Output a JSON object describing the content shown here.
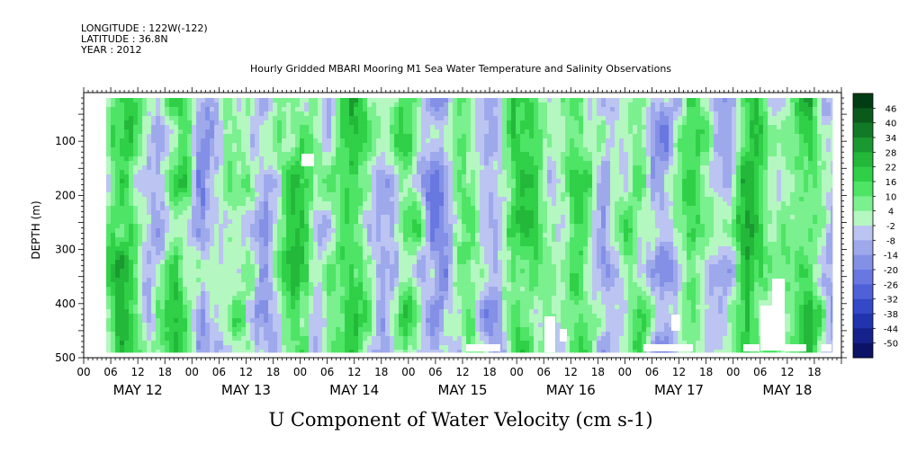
{
  "header": {
    "longitude": "LONGITUDE : 122W(-122)",
    "latitude": "LATITUDE : 36.8N",
    "year": "YEAR : 2012"
  },
  "chart_data": {
    "type": "heatmap",
    "title": "Hourly Gridded MBARI Mooring M1 Sea Water Temperature and Salinity Observations",
    "xlabel": "U Component of Water Velocity (cm s-1)",
    "ylabel": "DEPTH (m)",
    "y_reversed": true,
    "ylim": [
      500,
      10
    ],
    "y_ticks": [
      100,
      200,
      300,
      400,
      500
    ],
    "y_tick_labels": [
      "100",
      "200",
      "300",
      "400",
      "500"
    ],
    "x_hour_ticks": [
      "00",
      "06",
      "12",
      "18",
      "00",
      "06",
      "12",
      "18",
      "00",
      "06",
      "12",
      "18",
      "00",
      "06",
      "12",
      "18",
      "00",
      "06",
      "12",
      "18",
      "00",
      "06",
      "12",
      "18",
      "00",
      "06",
      "12",
      "18"
    ],
    "x_day_labels": [
      "MAY 12",
      "MAY 13",
      "MAY 14",
      "MAY 15",
      "MAY 16",
      "MAY 17",
      "MAY 18"
    ],
    "x_range_hours": [
      0,
      168
    ],
    "data_start_hour": 5,
    "data_end_hour": 166,
    "data_depth_range": [
      20,
      490
    ],
    "colorbar": {
      "levels": [
        50,
        46,
        40,
        34,
        28,
        22,
        16,
        10,
        4,
        -2,
        -8,
        -14,
        -20,
        -26,
        -32,
        -38,
        -44,
        -50
      ],
      "labels": [
        "46",
        "40",
        "34",
        "28",
        "22",
        "16",
        "10",
        "4",
        "-2",
        "-8",
        "-14",
        "-20",
        "-26",
        "-32",
        "-38",
        "-44",
        "-50"
      ],
      "colors": [
        "#003d13",
        "#0a5a1c",
        "#127a26",
        "#1a9930",
        "#24b83a",
        "#2fd047",
        "#4ee466",
        "#7af08f",
        "#b4f7c0",
        "#bcc4f2",
        "#9ea9ec",
        "#8390e6",
        "#6878e0",
        "#4f61d8",
        "#3449c8",
        "#2234ad",
        "#16228b",
        "#0c1265"
      ]
    },
    "note": "U velocity field alternates between green (eastward, positive) and blue/purple (westward, negative) bands through time; mostly within -20 to +22 cm s-1."
  }
}
